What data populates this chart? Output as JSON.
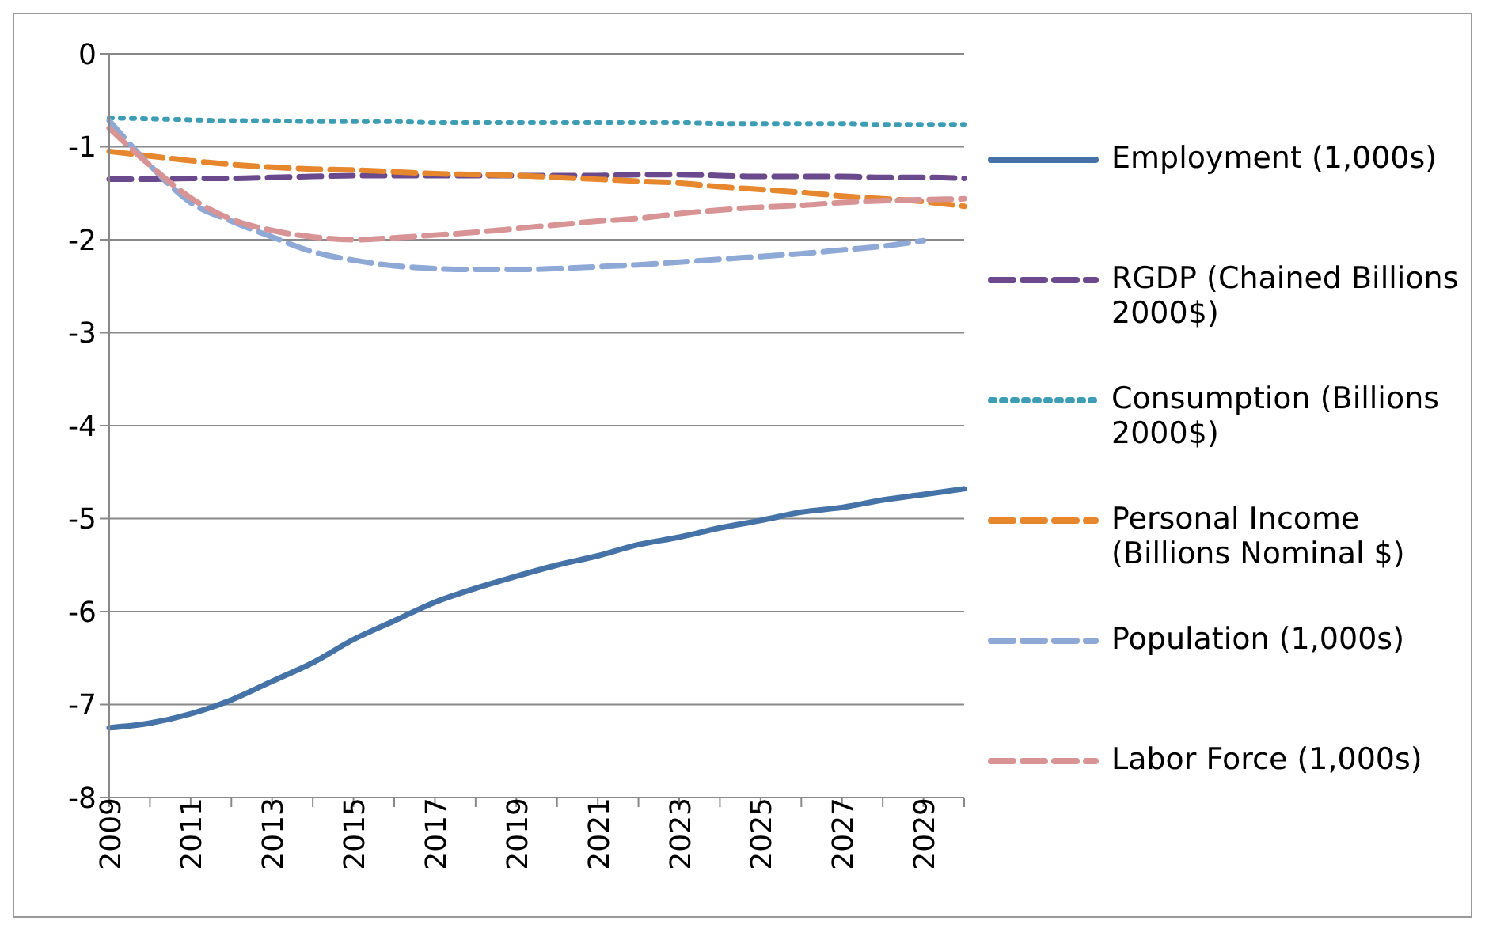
{
  "chart_data": {
    "type": "line",
    "categories": [
      "2009",
      null,
      "2011",
      null,
      "2013",
      null,
      "2015",
      null,
      "2017",
      null,
      "2019",
      null,
      "2021",
      null,
      "2023",
      null,
      "2025",
      null,
      "2027",
      null,
      "2029",
      null
    ],
    "series": [
      {
        "name": "Employment (1,000s)",
        "color": "#4572a7",
        "line_style": "solid",
        "values": [
          -7.25,
          -7.2,
          -7.1,
          -6.95,
          -6.75,
          -6.55,
          -6.3,
          -6.1,
          -5.9,
          -5.75,
          -5.62,
          -5.5,
          -5.4,
          -5.28,
          -5.2,
          -5.1,
          -5.02,
          -4.93,
          -4.88,
          -4.8,
          -4.74,
          -4.68
        ]
      },
      {
        "name": "RGDP (Chained Billions 2000$)",
        "color": "#6a4a8c",
        "line_style": "dashed",
        "values": [
          -1.35,
          -1.35,
          -1.34,
          -1.34,
          -1.33,
          -1.32,
          -1.31,
          -1.31,
          -1.31,
          -1.31,
          -1.31,
          -1.31,
          -1.31,
          -1.3,
          -1.3,
          -1.31,
          -1.32,
          -1.32,
          -1.32,
          -1.33,
          -1.33,
          -1.34
        ]
      },
      {
        "name": "Consumption (Billions 2000$)",
        "color": "#3c9db5",
        "line_style": "dotted",
        "values": [
          -0.69,
          -0.7,
          -0.71,
          -0.72,
          -0.72,
          -0.73,
          -0.73,
          -0.73,
          -0.74,
          -0.74,
          -0.74,
          -0.74,
          -0.74,
          -0.74,
          -0.74,
          -0.75,
          -0.75,
          -0.75,
          -0.75,
          -0.76,
          -0.76,
          -0.76
        ]
      },
      {
        "name": "Personal Income (Billions Nominal $)",
        "color": "#e6862d",
        "line_style": "dashed",
        "values": [
          -1.05,
          -1.1,
          -1.15,
          -1.19,
          -1.22,
          -1.24,
          -1.25,
          -1.27,
          -1.29,
          -1.3,
          -1.31,
          -1.33,
          -1.35,
          -1.37,
          -1.39,
          -1.43,
          -1.46,
          -1.49,
          -1.53,
          -1.56,
          -1.59,
          -1.64
        ]
      },
      {
        "name": "Population (1,000s)",
        "color": "#8fa9d6",
        "line_style": "dashed",
        "values": [
          -0.72,
          -1.2,
          -1.6,
          -1.8,
          -1.97,
          -2.13,
          -2.22,
          -2.28,
          -2.31,
          -2.32,
          -2.32,
          -2.31,
          -2.29,
          -2.27,
          -2.24,
          -2.21,
          -2.18,
          -2.15,
          -2.11,
          -2.07,
          -2.01,
          null
        ]
      },
      {
        "name": "Labor Force (1,000s)",
        "color": "#d89494",
        "line_style": "dashed",
        "values": [
          -0.8,
          -1.2,
          -1.55,
          -1.78,
          -1.9,
          -1.97,
          -2.0,
          -1.98,
          -1.95,
          -1.92,
          -1.88,
          -1.84,
          -1.8,
          -1.77,
          -1.72,
          -1.68,
          -1.65,
          -1.63,
          -1.6,
          -1.58,
          -1.57,
          -1.56
        ]
      }
    ],
    "ylim": [
      -8,
      0
    ],
    "yticks": [
      -8,
      -7,
      -6,
      -5,
      -4,
      -3,
      -2,
      -1,
      0
    ],
    "grid": "y",
    "legend": "right",
    "marker": "none"
  }
}
